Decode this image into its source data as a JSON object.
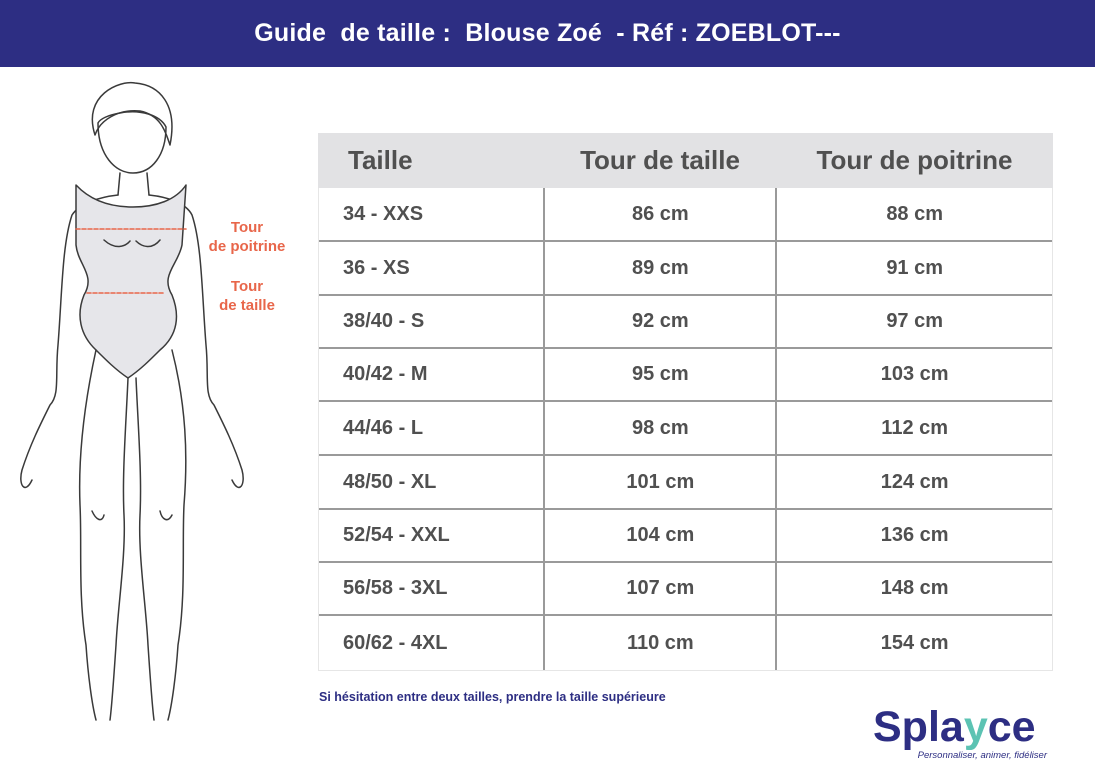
{
  "header": {
    "title": "Guide  de taille :  Blouse Zoé  - Réf : ZOEBLOT---"
  },
  "figure": {
    "bust_label_line1": "Tour",
    "bust_label_line2": "de poitrine",
    "waist_label_line1": "Tour",
    "waist_label_line2": "de taille",
    "accent_color": "#e8664a"
  },
  "table": {
    "headers": [
      "Taille",
      "Tour de taille",
      "Tour de poitrine"
    ],
    "rows": [
      [
        "34 - XXS",
        "86 cm",
        "88 cm"
      ],
      [
        "36 - XS",
        "89 cm",
        "91 cm"
      ],
      [
        "38/40 - S",
        "92 cm",
        "97 cm"
      ],
      [
        "40/42 - M",
        "95 cm",
        "103 cm"
      ],
      [
        "44/46 - L",
        "98 cm",
        "112 cm"
      ],
      [
        "48/50 - XL",
        "101 cm",
        "124 cm"
      ],
      [
        "52/54 - XXL",
        "104 cm",
        "136 cm"
      ],
      [
        "56/58 - 3XL",
        "107 cm",
        "148 cm"
      ],
      [
        "60/62 - 4XL",
        "110 cm",
        "154 cm"
      ]
    ]
  },
  "note": "Si hésitation entre deux tailles, prendre la taille supérieure",
  "logo": {
    "name_part1": "Spla",
    "name_part2": "y",
    "name_part3": "ce",
    "tagline": "Personnaliser, animer, fidéliser",
    "brand_color": "#2d2e83"
  }
}
